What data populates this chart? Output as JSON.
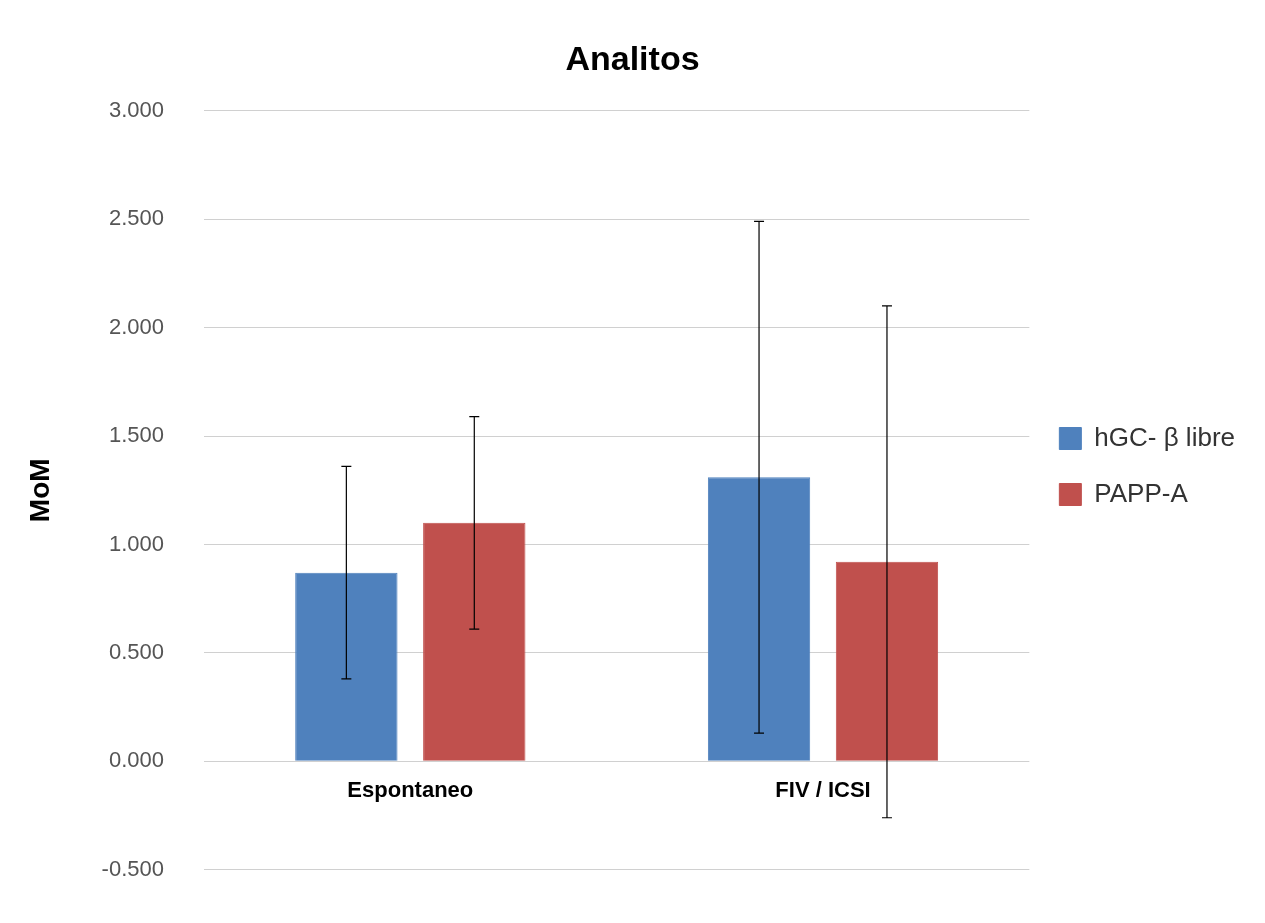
{
  "chart_data": {
    "type": "bar",
    "title": "Analitos",
    "ylabel": "MoM",
    "categories": [
      "Espontaneo",
      "FIV / ICSI"
    ],
    "series": [
      {
        "name": "hGC- β libre",
        "color": "#4f81bd",
        "values": [
          0.87,
          1.31
        ],
        "errors": [
          0.49,
          1.18
        ]
      },
      {
        "name": "PAPP-A",
        "color": "#c0504d",
        "values": [
          1.1,
          0.92
        ],
        "errors": [
          0.49,
          1.18
        ]
      }
    ],
    "ylim": [
      -0.5,
      3
    ],
    "yticks": [
      {
        "value": -0.5,
        "label": "-0.500"
      },
      {
        "value": 0,
        "label": "0.000"
      },
      {
        "value": 0.5,
        "label": "0.500"
      },
      {
        "value": 1,
        "label": "1.000"
      },
      {
        "value": 1.5,
        "label": "1.500"
      },
      {
        "value": 2,
        "label": "2.000"
      },
      {
        "value": 2.5,
        "label": "2.500"
      },
      {
        "value": 3,
        "label": "3.000"
      }
    ],
    "grid": "y",
    "legend": "right"
  }
}
